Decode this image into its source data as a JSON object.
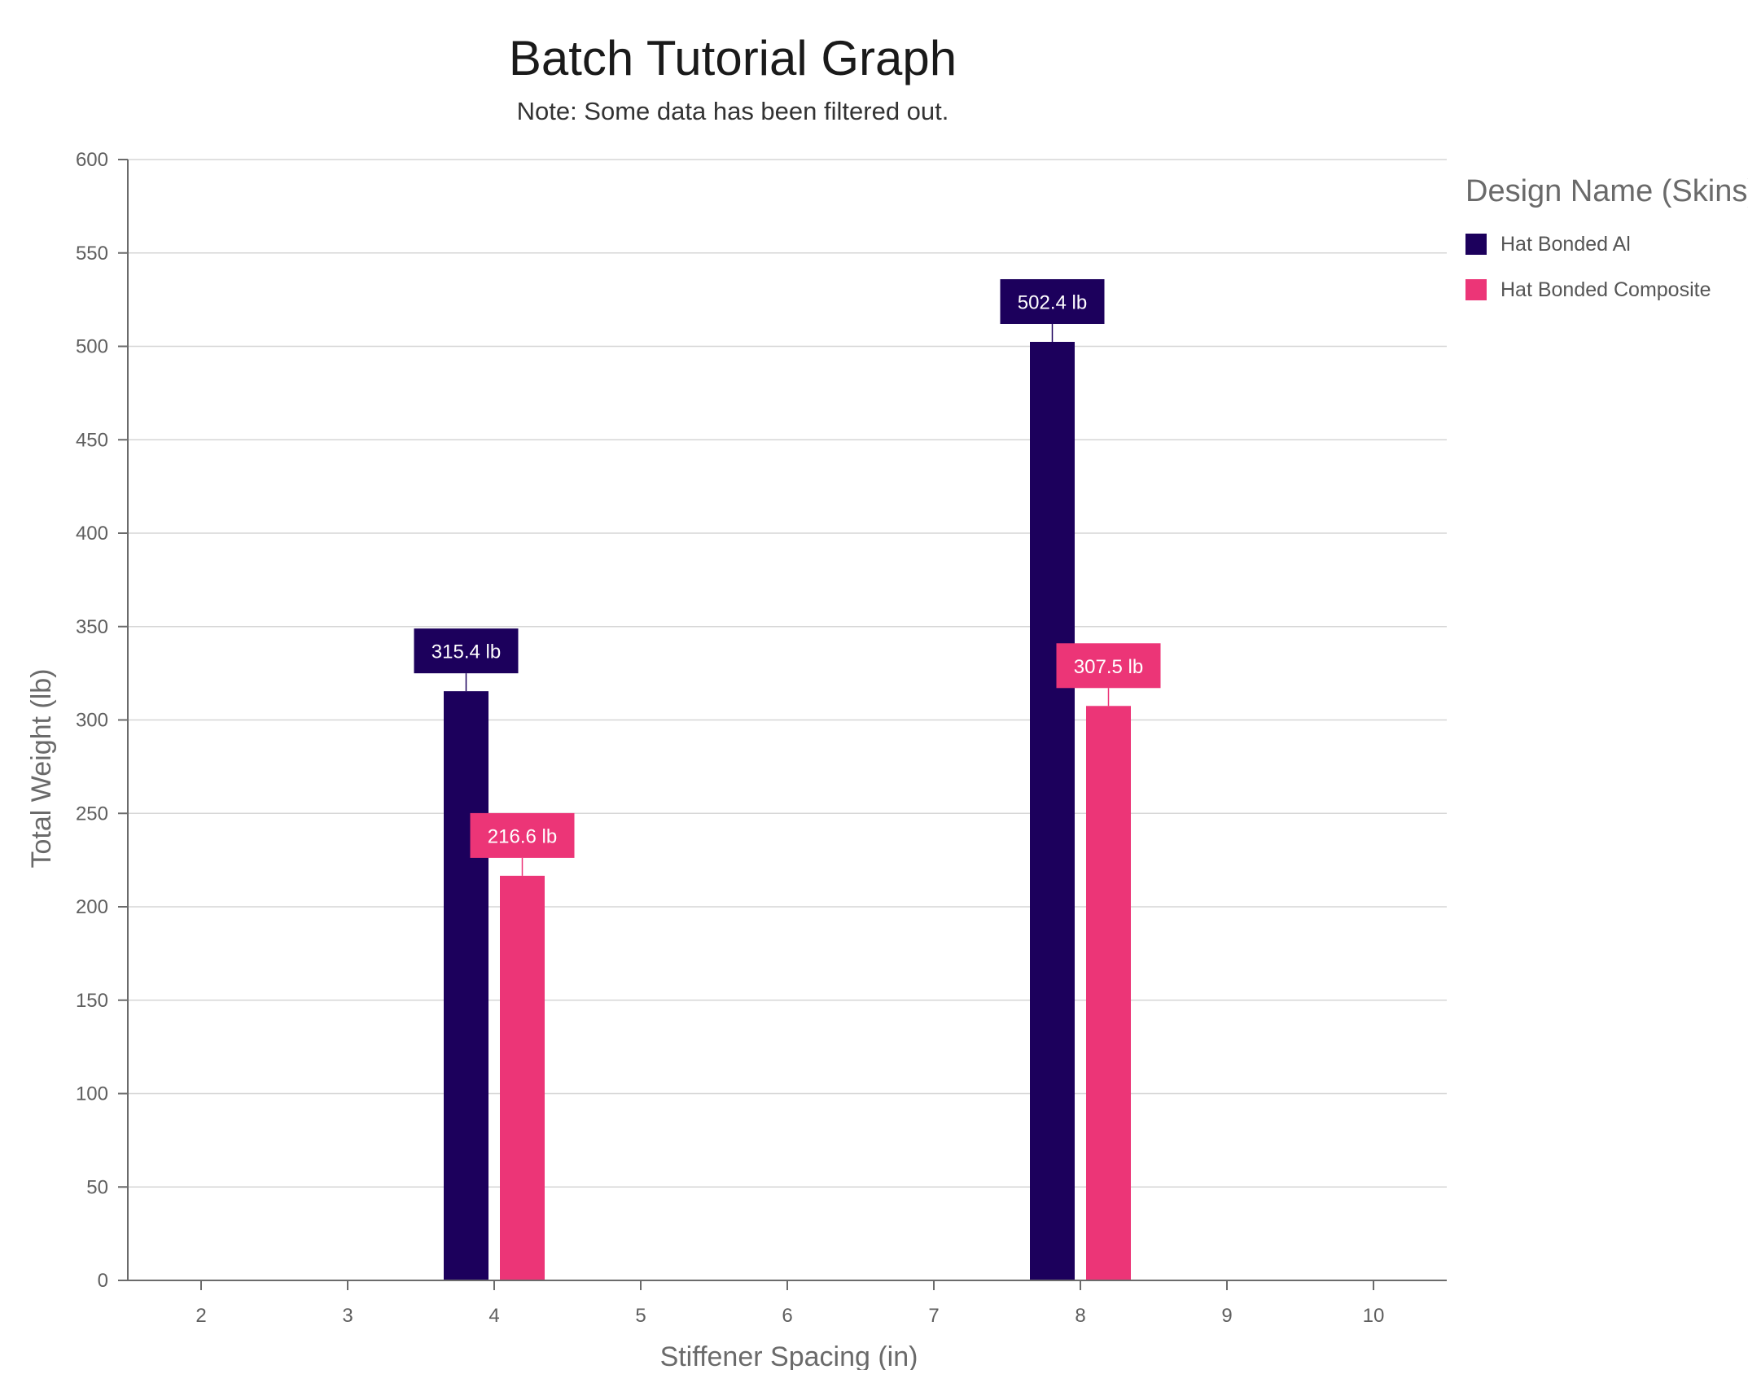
{
  "chart_data": {
    "type": "bar",
    "title": "Batch Tutorial Graph",
    "subtitle": "Note: Some data has been filtered out.",
    "xlabel": "Stiffener Spacing (in)",
    "ylabel": "Total Weight (lb)",
    "x_ticks": [
      "2",
      "3",
      "4",
      "5",
      "6",
      "7",
      "8",
      "9",
      "10"
    ],
    "xlim": [
      1.5,
      10.5
    ],
    "ylim": [
      0,
      600
    ],
    "y_ticks": [
      0,
      50,
      100,
      150,
      200,
      250,
      300,
      350,
      400,
      450,
      500,
      550,
      600
    ],
    "grid": true,
    "legend": {
      "title": "Design Name (Skins)",
      "position": "right"
    },
    "series": [
      {
        "name": "Hat Bonded Al",
        "color": "#1c005c",
        "points": [
          {
            "x": 4,
            "y": 315.4,
            "label": "315.4 lb"
          },
          {
            "x": 8,
            "y": 502.4,
            "label": "502.4 lb"
          }
        ]
      },
      {
        "name": "Hat Bonded Composite",
        "color": "#ec3577",
        "points": [
          {
            "x": 4,
            "y": 216.6,
            "label": "216.6 lb"
          },
          {
            "x": 8,
            "y": 307.5,
            "label": "307.5 lb"
          }
        ]
      }
    ]
  }
}
